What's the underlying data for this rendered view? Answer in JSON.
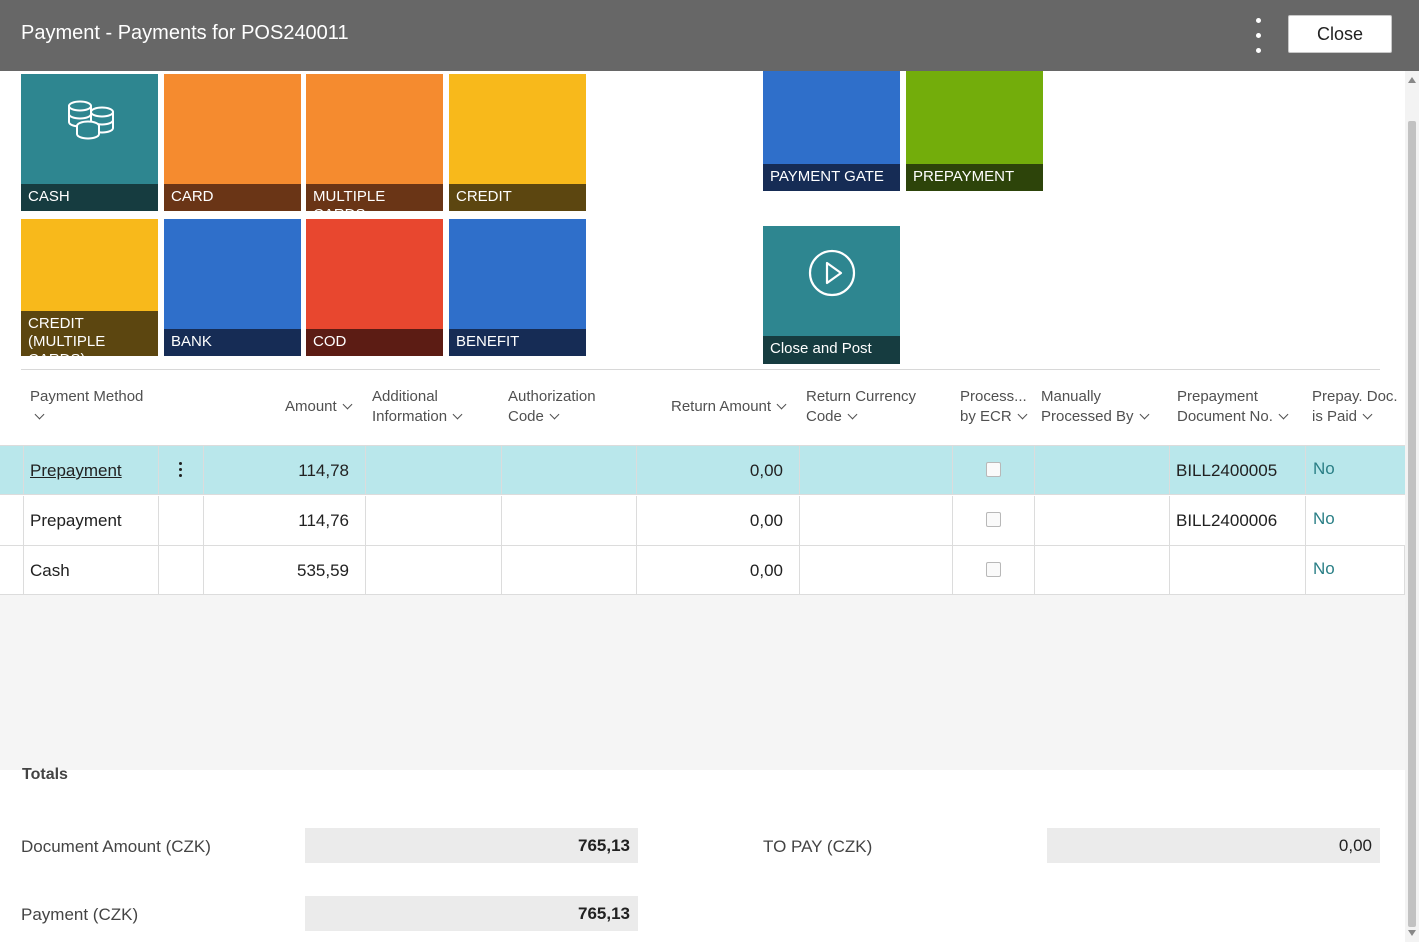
{
  "window": {
    "title": "Payment - Payments for POS240011",
    "close_label": "Close"
  },
  "tiles": [
    {
      "label": "CASH",
      "color": "#2e8690",
      "label_bg": "#163c40",
      "icon": "coins-icon"
    },
    {
      "label": "CARD",
      "color": "#f58b2f",
      "label_bg": "#6a3516"
    },
    {
      "label": "MULTIPLE CARDS",
      "color": "#f58b2f",
      "label_bg": "#6a3516"
    },
    {
      "label": "CREDIT",
      "color": "#f8b91b",
      "label_bg": "#5c4610"
    },
    {
      "label": "CREDIT (MULTIPLE CARDS)",
      "color": "#f8b91b",
      "label_bg": "#5c4610"
    },
    {
      "label": "BANK",
      "color": "#2f6fca",
      "label_bg": "#162c55"
    },
    {
      "label": "COD",
      "color": "#e8472f",
      "label_bg": "#5c1c14"
    },
    {
      "label": "BENEFIT",
      "color": "#2f6fca",
      "label_bg": "#162c55"
    },
    {
      "label": "PAYMENT GATE",
      "color": "#2f6fca",
      "label_bg": "#162c55"
    },
    {
      "label": "PREPAYMENT",
      "color": "#73ad0b",
      "label_bg": "#2d440a"
    },
    {
      "label": "Close and Post",
      "color": "#2e8690",
      "label_bg": "#163c40",
      "icon": "play-circle-icon"
    }
  ],
  "columns": {
    "payment_method": [
      "Payment Method",
      ""
    ],
    "amount": "Amount",
    "additional_information": [
      "Additional",
      "Information"
    ],
    "authorization_code": [
      "Authorization",
      "Code"
    ],
    "return_amount": "Return Amount",
    "return_currency_code": [
      "Return Currency",
      "Code"
    ],
    "processed_by_ecr": [
      "Process...",
      "by ECR"
    ],
    "manually_processed_by": [
      "Manually",
      "Processed By"
    ],
    "prepayment_document_no": [
      "Prepayment",
      "Document No."
    ],
    "prepay_doc_is_paid": [
      "Prepay. Doc.",
      "is Paid"
    ]
  },
  "rows": [
    {
      "payment_method": "Prepayment",
      "amount": "114,78",
      "additional_information": "",
      "authorization_code": "",
      "return_amount": "0,00",
      "return_currency_code": "",
      "processed_by_ecr": false,
      "manually_processed_by": "",
      "prepayment_document_no": "BILL2400005",
      "prepay_doc_is_paid": "No",
      "selected": true
    },
    {
      "payment_method": "Prepayment",
      "amount": "114,76",
      "additional_information": "",
      "authorization_code": "",
      "return_amount": "0,00",
      "return_currency_code": "",
      "processed_by_ecr": false,
      "manually_processed_by": "",
      "prepayment_document_no": "BILL2400006",
      "prepay_doc_is_paid": "No",
      "selected": false
    },
    {
      "payment_method": "Cash",
      "amount": "535,59",
      "additional_information": "",
      "authorization_code": "",
      "return_amount": "0,00",
      "return_currency_code": "",
      "processed_by_ecr": false,
      "manually_processed_by": "",
      "prepayment_document_no": "",
      "prepay_doc_is_paid": "No",
      "selected": false
    }
  ],
  "totals": {
    "caption": "Totals",
    "document_amount_label": "Document Amount (CZK)",
    "document_amount_value": "765,13",
    "payment_label": "Payment (CZK)",
    "payment_value": "765,13",
    "to_pay_label": "TO PAY (CZK)",
    "to_pay_value": "0,00"
  }
}
